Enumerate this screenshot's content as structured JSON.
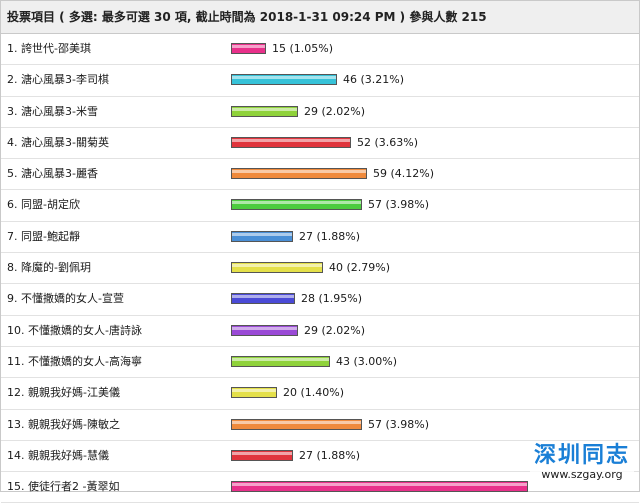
{
  "header": {
    "title": "投票項目 ( 多選: 最多可選 30 項, 截止時間為 2018-1-31 09:24 PM ) 參與人數 215"
  },
  "options": [
    {
      "label": "1. 誇世代-邵美琪",
      "votes": 15,
      "percent": "1.05%",
      "result": "15 (1.05%)",
      "color": "#e8308a"
    },
    {
      "label": "2. 溏心風暴3-李司棋",
      "votes": 46,
      "percent": "3.21%",
      "result": "46 (3.21%)",
      "color": "#36c2d8"
    },
    {
      "label": "3. 溏心風暴3-米雪",
      "votes": 29,
      "percent": "2.02%",
      "result": "29 (2.02%)",
      "color": "#8fd23a"
    },
    {
      "label": "4. 溏心風暴3-關菊英",
      "votes": 52,
      "percent": "3.63%",
      "result": "52 (3.63%)",
      "color": "#e0343c"
    },
    {
      "label": "5. 溏心風暴3-麗香",
      "votes": 59,
      "percent": "4.12%",
      "result": "59 (4.12%)",
      "color": "#ef8a3c"
    },
    {
      "label": "6. 同盟-胡定欣",
      "votes": 57,
      "percent": "3.98%",
      "result": "57 (3.98%)",
      "color": "#4ccc3e"
    },
    {
      "label": "7. 同盟-鮑起靜",
      "votes": 27,
      "percent": "1.88%",
      "result": "27 (1.88%)",
      "color": "#4a8fd6"
    },
    {
      "label": "8. 降魔的-劉佩玥",
      "votes": 40,
      "percent": "2.79%",
      "result": "40 (2.79%)",
      "color": "#e4e04a"
    },
    {
      "label": "9. 不懂撒嬌的女人-宣萱",
      "votes": 28,
      "percent": "1.95%",
      "result": "28 (1.95%)",
      "color": "#4a4ad6"
    },
    {
      "label": "10. 不懂撒嬌的女人-唐詩詠",
      "votes": 29,
      "percent": "2.02%",
      "result": "29 (2.02%)",
      "color": "#9a4ad6"
    },
    {
      "label": "11. 不懂撒嬌的女人-高海寧",
      "votes": 43,
      "percent": "3.00%",
      "result": "43 (3.00%)",
      "color": "#8fd23a"
    },
    {
      "label": "12. 親親我好媽-江美儀",
      "votes": 20,
      "percent": "1.40%",
      "result": "20 (1.40%)",
      "color": "#e4e04a"
    },
    {
      "label": "13. 親親我好媽-陳敏之",
      "votes": 57,
      "percent": "3.98%",
      "result": "57 (3.98%)",
      "color": "#ef8a3c"
    },
    {
      "label": "14. 親親我好媽-慧儀",
      "votes": 27,
      "percent": "1.88%",
      "result": "27 (1.88%)",
      "color": "#e0343c"
    },
    {
      "label": "15. 使徒行者2 -黃翠如",
      "votes": 129,
      "percent": "",
      "result": "",
      "color": "#e8308a"
    }
  ],
  "watermark": {
    "title": "深圳同志",
    "url": "www.szgay.org"
  }
}
